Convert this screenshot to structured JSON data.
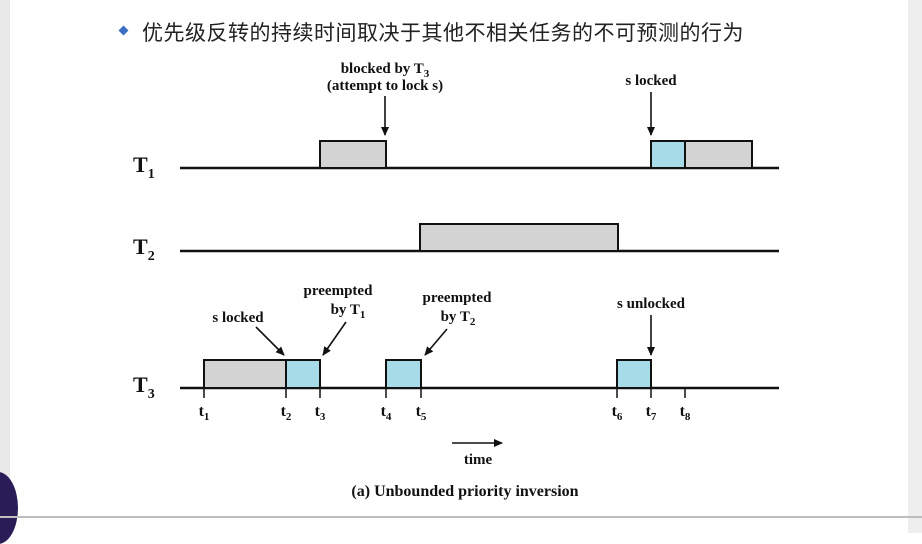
{
  "headline": "优先级反转的持续时间取决于其他不相关任务的不可预测的行为",
  "colors": {
    "exec": "#d3d3d3",
    "critical": "#a8dbe8",
    "accent": "#3b6fc4"
  },
  "tasks": [
    {
      "base": "T",
      "sub": "1"
    },
    {
      "base": "T",
      "sub": "2"
    },
    {
      "base": "T",
      "sub": "3"
    }
  ],
  "annotations": {
    "blocked_line1_base": "blocked by T",
    "blocked_line1_sub": "3",
    "blocked_line2": "(attempt to lock s)",
    "s_locked_t1": "s locked",
    "s_locked_t3": "s locked",
    "preempted_t1_line1": "preempted",
    "preempted_t1_line2_base": "by T",
    "preempted_t1_line2_sub": "1",
    "preempted_t2_line1": "preempted",
    "preempted_t2_line2_base": "by T",
    "preempted_t2_line2_sub": "2",
    "s_unlocked": "s unlocked"
  },
  "time_labels": [
    {
      "base": "t",
      "sub": "1"
    },
    {
      "base": "t",
      "sub": "2"
    },
    {
      "base": "t",
      "sub": "3"
    },
    {
      "base": "t",
      "sub": "4"
    },
    {
      "base": "t",
      "sub": "5"
    },
    {
      "base": "t",
      "sub": "6"
    },
    {
      "base": "t",
      "sub": "7"
    },
    {
      "base": "t",
      "sub": "8"
    }
  ],
  "time_axis_label": "time",
  "caption": "(a) Unbounded priority inversion"
}
